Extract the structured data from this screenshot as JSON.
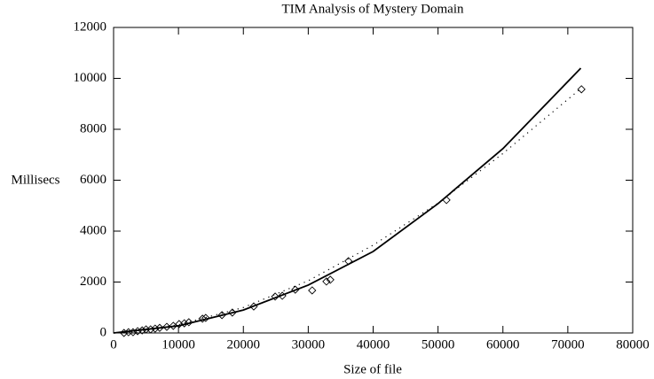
{
  "chart_data": {
    "type": "scatter",
    "title": "TIM Analysis of Mystery Domain",
    "x_label": "Size of file",
    "y_label": "Millisecs",
    "xlim": [
      0,
      80000
    ],
    "ylim": [
      0,
      12000
    ],
    "xticks": [
      0,
      10000,
      20000,
      30000,
      40000,
      50000,
      60000,
      70000,
      80000
    ],
    "yticks": [
      0,
      2000,
      4000,
      6000,
      8000,
      10000,
      12000
    ],
    "series": [
      {
        "type": "scatter",
        "color": "#000000",
        "x": [
          1600,
          2300,
          3000,
          3700,
          4400,
          5000,
          5700,
          6400,
          7100,
          8200,
          9200,
          10100,
          10900,
          11600,
          13700,
          14200,
          16700,
          18300,
          21600,
          24900,
          26000,
          28000,
          30600,
          32800,
          33400,
          36200,
          51300,
          72100
        ],
        "values": [
          0,
          30,
          30,
          70,
          100,
          140,
          140,
          170,
          200,
          240,
          280,
          350,
          380,
          420,
          560,
          590,
          700,
          800,
          1040,
          1430,
          1460,
          1700,
          1670,
          2020,
          2090,
          2820,
          5220,
          9570
        ]
      },
      {
        "type": "line",
        "style": "solid",
        "color": "#000000",
        "x": [
          0,
          10000,
          20000,
          30000,
          40000,
          50000,
          60000,
          72000
        ],
        "values": [
          0,
          280,
          900,
          1880,
          3200,
          5080,
          7240,
          10400
        ]
      },
      {
        "type": "line",
        "style": "dotted",
        "color": "#000000",
        "x": [
          0,
          10000,
          20000,
          30000,
          40000,
          50000,
          60000,
          72000
        ],
        "values": [
          0,
          320,
          1000,
          2050,
          3450,
          5100,
          7050,
          9600
        ]
      }
    ]
  }
}
